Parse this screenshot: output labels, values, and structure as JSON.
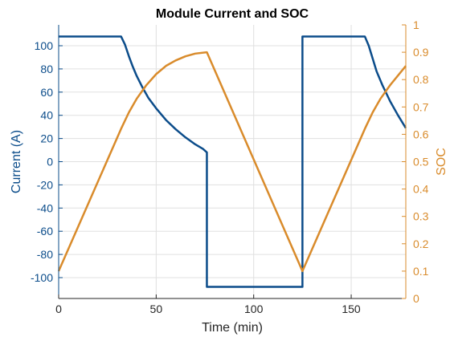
{
  "chart_data": {
    "type": "line",
    "title": "Module Current and SOC",
    "xlabel": "Time (min)",
    "ylabel_left": "Current (A)",
    "ylabel_right": "SOC",
    "xlim": [
      0,
      178
    ],
    "ylim_left": [
      -118,
      118
    ],
    "ylim_right": [
      0,
      1
    ],
    "x_ticks": [
      0,
      50,
      100,
      150
    ],
    "x_tick_labels": [
      "0",
      "50",
      "100",
      "150"
    ],
    "y_left_ticks": [
      100,
      80,
      60,
      40,
      20,
      0,
      -20,
      -40,
      -60,
      -80,
      -100
    ],
    "y_left_tick_labels": [
      "100",
      "80",
      "60",
      "40",
      "20",
      "0",
      "-20",
      "-40",
      "-60",
      "-80",
      "-100"
    ],
    "y_right_ticks": [
      1,
      0.9,
      0.8,
      0.7,
      0.6,
      0.5,
      0.4,
      0.3,
      0.2,
      0.1,
      0
    ],
    "y_right_tick_labels": [
      "1",
      "0.9",
      "0.8",
      "0.7",
      "0.6",
      "0.5",
      "0.4",
      "0.3",
      "0.2",
      "0.1",
      "0"
    ],
    "grid": true,
    "colors": {
      "current": "#0b4c8a",
      "soc": "#d98b2b",
      "grid": "#e0e0e0",
      "axis": "#262626"
    },
    "series": [
      {
        "axis": "left",
        "x": [
          0,
          32,
          34,
          36,
          38,
          40,
          43,
          46,
          50,
          55,
          60,
          65,
          70,
          74,
          76,
          76,
          125,
          125,
          157,
          159,
          161,
          163,
          166,
          170,
          174,
          178
        ],
        "values": [
          108,
          108,
          101,
          91,
          82,
          74,
          64,
          55,
          46,
          36,
          28,
          21,
          15,
          11,
          8,
          -108,
          -108,
          108,
          108,
          100,
          89,
          78,
          66,
          52,
          40,
          29
        ]
      },
      {
        "axis": "right",
        "x": [
          0,
          32,
          36,
          40,
          45,
          50,
          55,
          60,
          65,
          70,
          76,
          125,
          157,
          161,
          165,
          170,
          178
        ],
        "values": [
          0.1,
          0.62,
          0.68,
          0.73,
          0.78,
          0.82,
          0.85,
          0.87,
          0.885,
          0.895,
          0.9,
          0.1,
          0.62,
          0.68,
          0.73,
          0.78,
          0.85
        ]
      }
    ]
  }
}
